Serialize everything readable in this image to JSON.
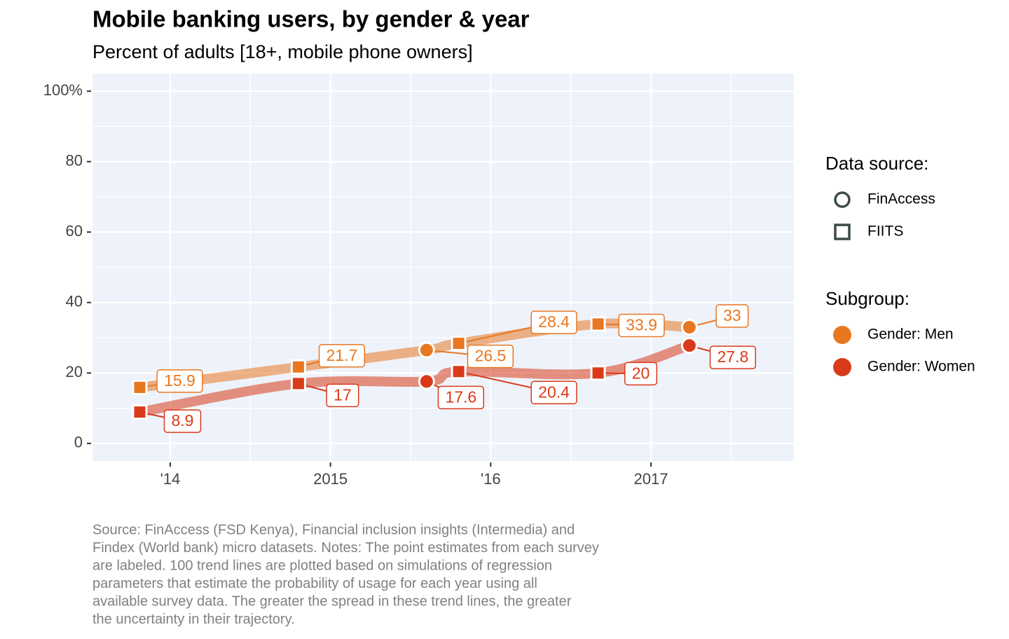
{
  "chart_data": {
    "type": "scatter",
    "title": "Mobile banking users, by gender & year",
    "subtitle": "Percent of adults [18+, mobile phone owners]",
    "xlim": [
      2013.515,
      2017.892
    ],
    "xticks": [
      {
        "value": 2014,
        "label": "'14"
      },
      2015,
      {
        "value": 2016,
        "label": "'16"
      },
      2017
    ],
    "ylim": [
      -5,
      105
    ],
    "yticks": [
      0,
      20,
      40,
      60,
      80,
      {
        "value": 100,
        "label": "100%"
      }
    ],
    "grid": true,
    "legend_position": "right",
    "shape_legend": {
      "title": "Data source:",
      "items": [
        "FinAccess",
        "FIITS"
      ]
    },
    "color_legend_title": "Subgroup:",
    "series": [
      {
        "name": "Gender: Men",
        "color": "#e87722",
        "x": [
          2013.81,
          2014.8,
          2015.6,
          2015.8,
          2016.67,
          2017.24
        ],
        "values": [
          15.9,
          21.7,
          26.5,
          28.4,
          33.9,
          33
        ],
        "sources": [
          "FIITS",
          "FIITS",
          "FinAccess",
          "FIITS",
          "FIITS",
          "FinAccess"
        ]
      },
      {
        "name": "Gender: Women",
        "color": "#d93a1a",
        "x": [
          2013.81,
          2014.8,
          2015.6,
          2015.8,
          2016.67,
          2017.24
        ],
        "values": [
          8.9,
          17,
          17.6,
          20.4,
          20,
          27.8
        ],
        "sources": [
          "FIITS",
          "FIITS",
          "FinAccess",
          "FIITS",
          "FIITS",
          "FinAccess"
        ]
      }
    ],
    "caption": [
      "Source: FinAccess (FSD Kenya), Financial inclusion insights (Intermedia) and",
      "Findex (World bank) micro datasets. Notes: The point estimates from each survey",
      "are labeled. 100 trend lines are plotted based on simulations of regression",
      "parameters that estimate the probability of usage for each year using all",
      "available survey data. The greater the spread in these trend lines, the greater",
      "the uncertainty in their trajectory."
    ]
  }
}
